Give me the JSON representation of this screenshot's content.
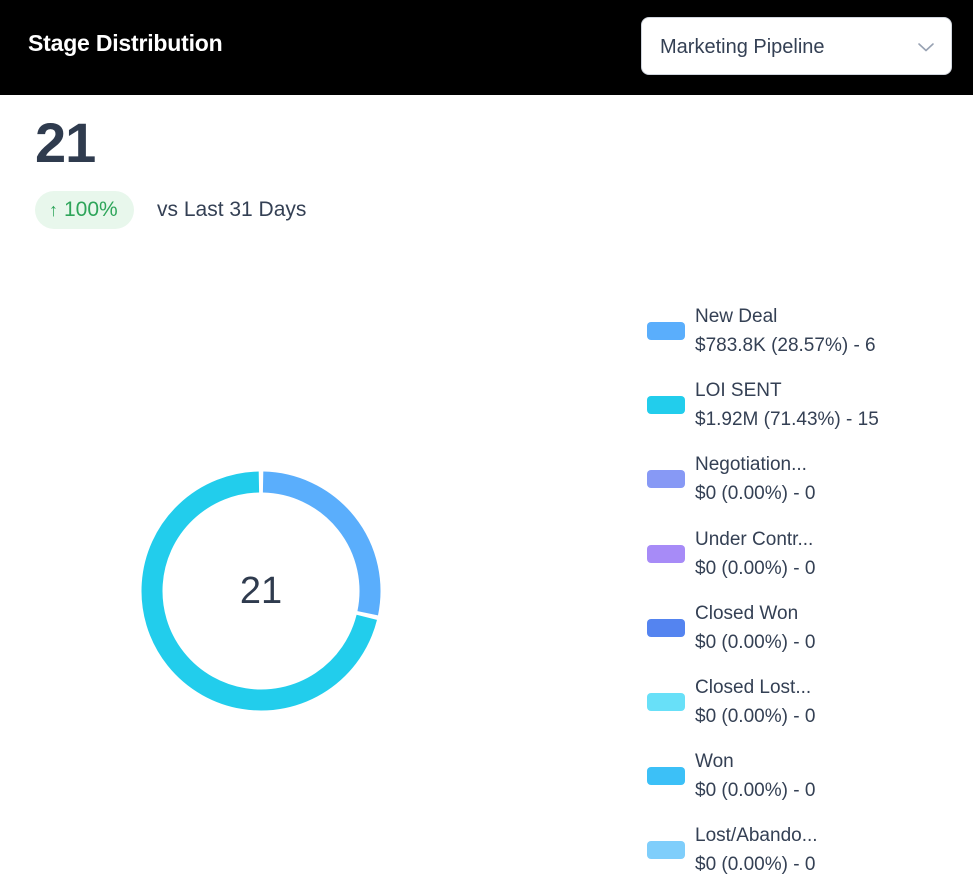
{
  "header": {
    "title": "Stage Distribution",
    "pipeline_select": {
      "value": "Marketing Pipeline",
      "icon": "chevron-down-icon"
    }
  },
  "summary": {
    "total": "21",
    "trend_value": "100%",
    "trend_icon": "arrow-up-icon",
    "trend_caption": "vs Last 31 Days"
  },
  "colors": {
    "header_bg": "#000000",
    "trend_badge_bg": "#e8f7ec",
    "trend_text": "#2ea55a"
  },
  "chart_data": {
    "type": "pie",
    "variant": "donut",
    "center_label": "21",
    "legend_position": "right",
    "slices": [
      {
        "name": "New Deal",
        "detail": "$783.8K (28.57%) - 6",
        "value": 6,
        "percent": 28.57,
        "color": "#5aaefc"
      },
      {
        "name": "LOI SENT",
        "detail": "$1.92M (71.43%) - 15",
        "value": 15,
        "percent": 71.43,
        "color": "#22cdec"
      },
      {
        "name": "Negotiation...",
        "detail": "$0 (0.00%) - 0",
        "value": 0,
        "percent": 0,
        "color": "#8799f5"
      },
      {
        "name": "Under Contr...",
        "detail": "$0 (0.00%) - 0",
        "value": 0,
        "percent": 0,
        "color": "#a78bf7"
      },
      {
        "name": "Closed Won",
        "detail": "$0 (0.00%) - 0",
        "value": 0,
        "percent": 0,
        "color": "#5484f0"
      },
      {
        "name": "Closed Lost...",
        "detail": "$0 (0.00%) - 0",
        "value": 0,
        "percent": 0,
        "color": "#68e0f8"
      },
      {
        "name": "Won",
        "detail": "$0 (0.00%) - 0",
        "value": 0,
        "percent": 0,
        "color": "#3cc0f7"
      },
      {
        "name": "Lost/Abando...",
        "detail": "$0 (0.00%) - 0",
        "value": 0,
        "percent": 0,
        "color": "#7fcefb"
      }
    ]
  }
}
